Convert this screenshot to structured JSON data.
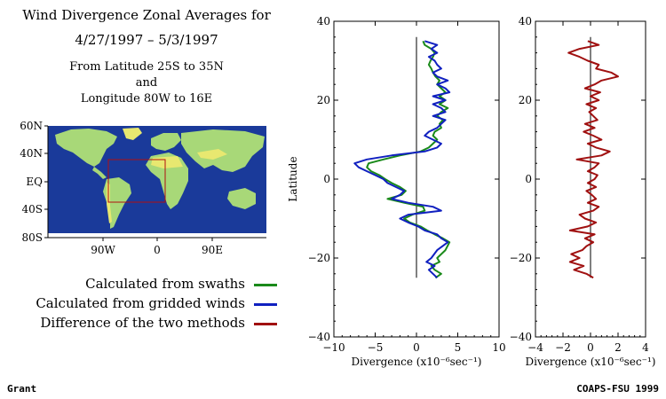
{
  "header": {
    "title_line1": "Wind Divergence Zonal Averages for",
    "title_line2": "4/27/1997 – 5/3/1997",
    "sub_line1": "From Latitude 25S to 35N",
    "sub_line2": "and",
    "sub_line3": "Longitude 80W to 16E"
  },
  "map": {
    "lat_labels": [
      "60N",
      "40N",
      "EQ",
      "40S",
      "80S"
    ],
    "lon_labels": [
      "90W",
      "0",
      "90E"
    ],
    "colors": {
      "ocean": "#1a3a9a",
      "land": "#a8d878",
      "land_high": "#e8e870",
      "box": "#b01010"
    }
  },
  "legend": [
    {
      "label": "Calculated from swaths",
      "color": "#1a8a1a"
    },
    {
      "label": "Calculated from gridded winds",
      "color": "#1020c0"
    },
    {
      "label": "Difference of the two methods",
      "color": "#a01010"
    }
  ],
  "footer": {
    "left": "Grant",
    "right": "COAPS-FSU 1999"
  },
  "chart_data": [
    {
      "type": "line",
      "xlabel": "Divergence (x10⁻⁶sec⁻¹)",
      "ylabel": "Latitude",
      "xlim": [
        -10,
        10
      ],
      "ylim": [
        -40,
        40
      ],
      "xticks": [
        "−10",
        "−5",
        "0",
        "5",
        "10"
      ],
      "yticks": [
        "−40",
        "−20",
        "0",
        "20",
        "40"
      ],
      "series": [
        {
          "color": "#1a8a1a",
          "lat": [
            -25,
            -24,
            -23,
            -22,
            -21,
            -20,
            -18,
            -16,
            -15,
            -14,
            -13,
            -12,
            -11,
            -10,
            -9,
            -8,
            -7,
            -6,
            -5,
            -4,
            -3,
            -2,
            -1,
            0,
            1,
            2,
            3,
            4,
            5,
            6,
            7,
            8,
            9,
            10,
            11,
            12,
            13,
            14,
            15,
            16,
            17,
            18,
            19,
            20,
            21,
            22,
            23,
            24,
            25,
            26,
            27,
            28,
            29,
            30,
            31,
            32,
            33,
            34,
            35
          ],
          "div": [
            2.3,
            3.0,
            2.2,
            1.8,
            2.8,
            2.5,
            3.5,
            4.0,
            3.2,
            2.2,
            1.3,
            0.5,
            -0.8,
            -1.5,
            -0.5,
            1.0,
            0.8,
            -1.5,
            -3.5,
            -1.8,
            -1.3,
            -2.0,
            -3.0,
            -3.8,
            -4.5,
            -5.5,
            -6.0,
            -5.8,
            -4.0,
            -2.0,
            0.5,
            1.5,
            2.0,
            2.5,
            2.0,
            2.2,
            3.0,
            2.8,
            3.2,
            2.5,
            3.0,
            3.8,
            2.8,
            3.5,
            2.8,
            3.5,
            3.0,
            2.5,
            2.8,
            2.3,
            2.0,
            1.8,
            1.5,
            1.7,
            2.0,
            2.2,
            1.8,
            1.0,
            0.8
          ]
        },
        {
          "color": "#1020c0",
          "lat": [
            -25,
            -24,
            -23,
            -22,
            -21,
            -20,
            -18,
            -16,
            -15,
            -14,
            -13,
            -12,
            -11,
            -10,
            -9,
            -8,
            -7,
            -6,
            -5,
            -4,
            -3,
            -2,
            -1,
            0,
            1,
            2,
            3,
            4,
            5,
            6,
            7,
            8,
            9,
            10,
            11,
            12,
            13,
            14,
            15,
            16,
            17,
            18,
            19,
            20,
            21,
            22,
            23,
            24,
            25,
            26,
            27,
            28,
            29,
            30,
            31,
            32,
            33,
            34,
            35
          ],
          "div": [
            2.5,
            2.0,
            1.5,
            2.2,
            1.2,
            1.8,
            2.5,
            3.8,
            3.0,
            2.5,
            1.0,
            0.2,
            -1.0,
            -2.0,
            -1.0,
            3.0,
            2.0,
            -1.0,
            -3.0,
            -2.0,
            -1.5,
            -2.5,
            -3.5,
            -4.0,
            -5.0,
            -6.0,
            -7.0,
            -7.5,
            -6.0,
            -3.0,
            1.0,
            2.5,
            3.0,
            2.0,
            1.0,
            1.5,
            2.5,
            3.0,
            3.5,
            2.0,
            3.5,
            3.0,
            2.0,
            3.5,
            2.0,
            4.0,
            3.5,
            2.5,
            3.8,
            2.5,
            2.0,
            3.0,
            2.5,
            2.2,
            1.5,
            2.5,
            1.8,
            2.5,
            1.0
          ]
        }
      ]
    },
    {
      "type": "line",
      "xlabel": "Divergence (x10⁻⁶sec⁻¹)",
      "ylabel": "",
      "xlim": [
        -4,
        4
      ],
      "ylim": [
        -40,
        40
      ],
      "xticks": [
        "−4",
        "−2",
        "0",
        "2",
        "4"
      ],
      "yticks": [
        "−40",
        "−20",
        "0",
        "20",
        "40"
      ],
      "series": [
        {
          "color": "#a01010",
          "lat": [
            -25,
            -24,
            -23,
            -22,
            -21,
            -20,
            -19,
            -18,
            -17,
            -16,
            -15,
            -14,
            -13,
            -12,
            -11,
            -10,
            -9,
            -8,
            -7,
            -6,
            -5,
            -4,
            -3,
            -2,
            -1,
            0,
            1,
            2,
            3,
            4,
            5,
            6,
            7,
            8,
            9,
            10,
            11,
            12,
            13,
            14,
            15,
            16,
            17,
            18,
            19,
            20,
            21,
            22,
            23,
            24,
            25,
            26,
            27,
            28,
            29,
            30,
            31,
            32,
            33,
            34,
            35
          ],
          "div": [
            0.2,
            -0.3,
            -1.2,
            -0.5,
            -1.5,
            -0.8,
            -1.4,
            -0.6,
            -0.3,
            0.2,
            -0.4,
            0.3,
            -1.5,
            -0.2,
            0.4,
            -0.4,
            -0.8,
            0.2,
            0.6,
            -0.2,
            0.4,
            0.1,
            -0.3,
            0.4,
            -0.2,
            0.3,
            0.5,
            -0.2,
            0.3,
            0.6,
            -1.0,
            0.8,
            1.4,
            0.4,
            -0.2,
            0.8,
            0.2,
            -0.5,
            0.3,
            -0.4,
            0.5,
            0.2,
            -0.1,
            0.4,
            -0.3,
            0.6,
            0.0,
            0.7,
            -0.4,
            0.3,
            0.8,
            2.0,
            1.5,
            0.4,
            0.6,
            -0.2,
            -0.8,
            -1.6,
            -0.8,
            0.6,
            -0.2
          ]
        }
      ]
    }
  ]
}
